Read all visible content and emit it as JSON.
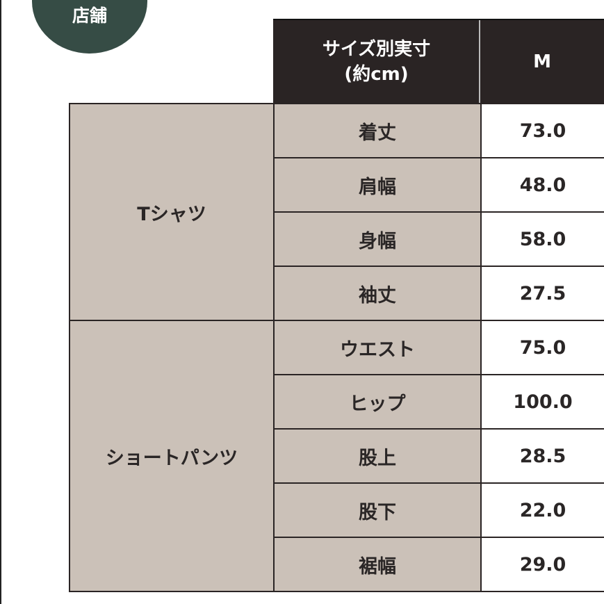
{
  "badge": {
    "label": "店舗",
    "color": "#364c45"
  },
  "header": {
    "measure_label": "サイズ別実寸\n(約cm)",
    "size": "M"
  },
  "colors": {
    "header_bg": "#2a2424",
    "label_bg": "#cbc1b8"
  },
  "groups": [
    {
      "name": "Tシャツ",
      "rows": [
        {
          "label": "着丈",
          "value": "73.0"
        },
        {
          "label": "肩幅",
          "value": "48.0"
        },
        {
          "label": "身幅",
          "value": "58.0"
        },
        {
          "label": "袖丈",
          "value": "27.5"
        }
      ]
    },
    {
      "name": "ショートパンツ",
      "rows": [
        {
          "label": "ウエスト",
          "value": "75.0"
        },
        {
          "label": "ヒップ",
          "value": "100.0"
        },
        {
          "label": "股上",
          "value": "28.5"
        },
        {
          "label": "股下",
          "value": "22.0"
        },
        {
          "label": "裾幅",
          "value": "29.0"
        }
      ]
    }
  ]
}
